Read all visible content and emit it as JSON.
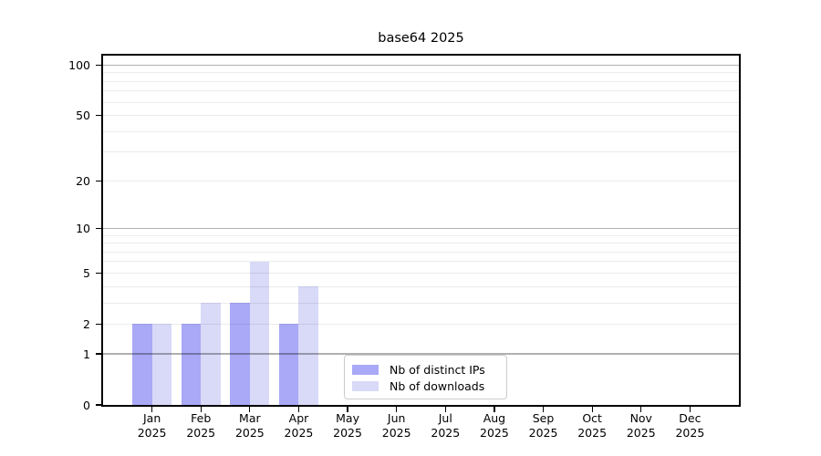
{
  "title": "base64 2025",
  "chart_data": {
    "type": "bar",
    "title": "base64 2025",
    "months": [
      "Jan",
      "Feb",
      "Mar",
      "Apr",
      "May",
      "Jun",
      "Jul",
      "Aug",
      "Sep",
      "Oct",
      "Nov",
      "Dec"
    ],
    "year": "2025",
    "series": [
      {
        "name": "Nb of distinct IPs",
        "color": "#a9a9f7",
        "values": [
          2,
          2,
          3,
          2,
          0,
          0,
          0,
          0,
          0,
          0,
          0,
          0
        ]
      },
      {
        "name": "Nb of downloads",
        "color": "#d9d9f8",
        "values": [
          2,
          3,
          6,
          4,
          0,
          0,
          0,
          0,
          0,
          0,
          0,
          0
        ]
      }
    ],
    "yscale": "log10(value+1)",
    "ylim": [
      0,
      114
    ],
    "ytick_values": [
      0,
      1,
      2,
      5,
      10,
      20,
      50,
      100
    ],
    "major_gridlines": [
      1,
      10,
      100
    ],
    "minor_gridlines": [
      2,
      3,
      4,
      5,
      6,
      7,
      8,
      9,
      20,
      30,
      40,
      50,
      60,
      70,
      80,
      90
    ],
    "grid": "on",
    "legend_position": "lower center",
    "colors": {
      "bar_distinct_ips": "#a9a9f7",
      "bar_downloads": "#d9d9f8",
      "grid_major": "rgba(0,0,0,0.31)",
      "grid_minor": "rgba(0,0,0,0.075)",
      "spine": "#000000",
      "text": "#000000",
      "legend_border": "#cccccc",
      "background": "#ffffff"
    }
  }
}
